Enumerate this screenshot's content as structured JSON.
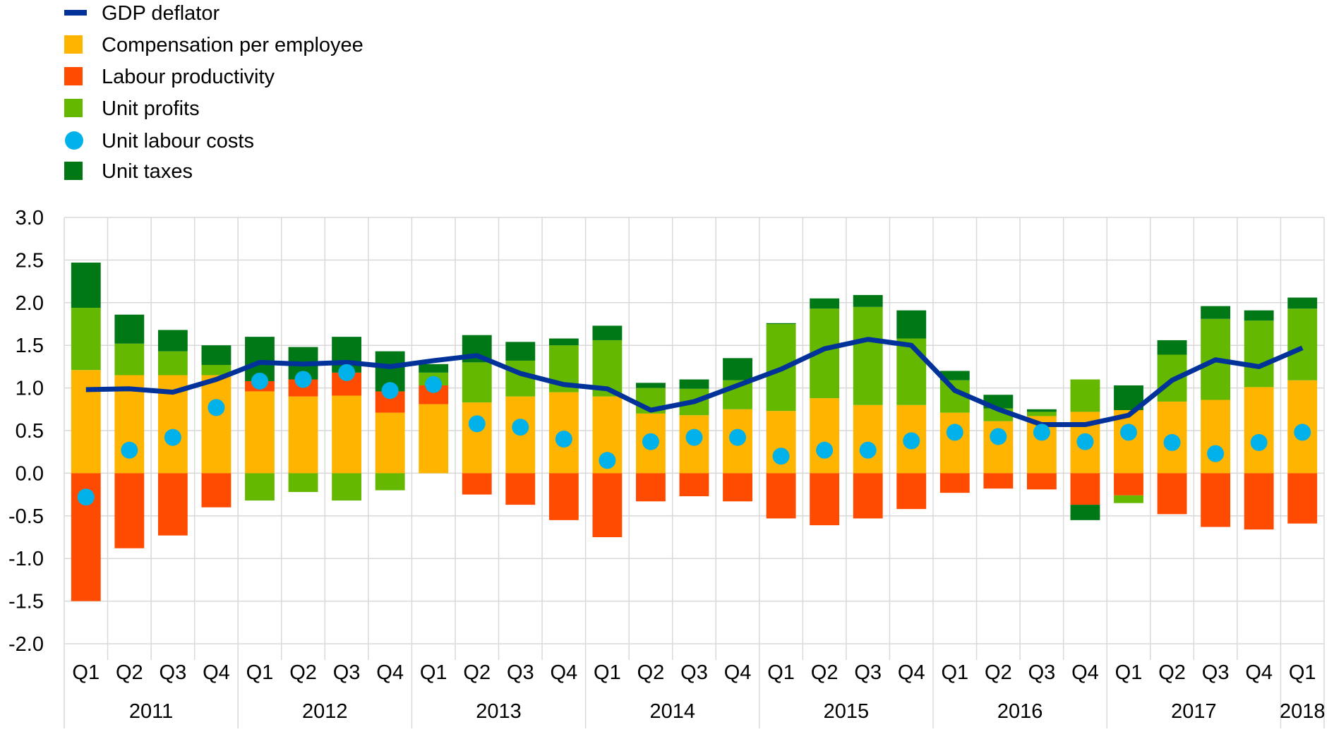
{
  "chart_data": {
    "type": "bar",
    "title": "",
    "xlabel": "",
    "ylabel": "",
    "ylim": [
      -2.0,
      3.0
    ],
    "yticks": [
      "3.0",
      "2.5",
      "2.0",
      "1.5",
      "1.0",
      "0.5",
      "0.0",
      "-0.5",
      "-1.0",
      "-1.5",
      "-2.0"
    ],
    "ytick_values": [
      3.0,
      2.5,
      2.0,
      1.5,
      1.0,
      0.5,
      0.0,
      -0.5,
      -1.0,
      -1.5,
      -2.0
    ],
    "grid": true,
    "legend_position": "top-left",
    "years": [
      {
        "label": "2011",
        "quarters": 4
      },
      {
        "label": "2012",
        "quarters": 4
      },
      {
        "label": "2013",
        "quarters": 4
      },
      {
        "label": "2014",
        "quarters": 4
      },
      {
        "label": "2015",
        "quarters": 4
      },
      {
        "label": "2016",
        "quarters": 4
      },
      {
        "label": "2017",
        "quarters": 4
      },
      {
        "label": "2018",
        "quarters": 1
      }
    ],
    "categories": [
      "Q1",
      "Q2",
      "Q3",
      "Q4",
      "Q1",
      "Q2",
      "Q3",
      "Q4",
      "Q1",
      "Q2",
      "Q3",
      "Q4",
      "Q1",
      "Q2",
      "Q3",
      "Q4",
      "Q1",
      "Q2",
      "Q3",
      "Q4",
      "Q1",
      "Q2",
      "Q3",
      "Q4",
      "Q1",
      "Q2",
      "Q3",
      "Q4",
      "Q1"
    ],
    "series": [
      {
        "name": "GDP deflator",
        "kind": "line",
        "color": "#003299",
        "values": [
          0.98,
          0.99,
          0.95,
          1.1,
          1.3,
          1.28,
          1.3,
          1.25,
          1.32,
          1.38,
          1.17,
          1.04,
          0.99,
          0.74,
          0.84,
          1.03,
          1.22,
          1.46,
          1.57,
          1.5,
          0.97,
          0.75,
          0.57,
          0.57,
          0.68,
          1.09,
          1.33,
          1.25,
          1.47
        ]
      },
      {
        "name": "Compensation per employee",
        "kind": "bar",
        "color": "#FFB400",
        "values": [
          1.21,
          1.15,
          1.15,
          1.15,
          0.96,
          0.9,
          0.91,
          0.71,
          0.81,
          0.83,
          0.9,
          0.95,
          0.9,
          0.7,
          0.68,
          0.75,
          0.73,
          0.88,
          0.8,
          0.8,
          0.71,
          0.61,
          0.67,
          0.72,
          0.74,
          0.84,
          0.86,
          1.01,
          1.09
        ]
      },
      {
        "name": "Labour productivity",
        "kind": "bar",
        "color": "#FF4B00",
        "values": [
          -1.5,
          -0.88,
          -0.73,
          -0.4,
          0.12,
          0.2,
          0.27,
          0.25,
          0.22,
          -0.25,
          -0.37,
          -0.55,
          -0.75,
          -0.33,
          -0.27,
          -0.33,
          -0.53,
          -0.61,
          -0.53,
          -0.42,
          -0.23,
          -0.18,
          -0.19,
          -0.37,
          -0.26,
          -0.48,
          -0.63,
          -0.66,
          -0.59
        ]
      },
      {
        "name": "Unit profits",
        "kind": "bar",
        "color": "#65B800",
        "values": [
          0.73,
          0.37,
          0.28,
          0.12,
          -0.32,
          -0.22,
          -0.32,
          -0.2,
          0.15,
          0.47,
          0.42,
          0.55,
          0.66,
          0.3,
          0.31,
          0.34,
          1.02,
          1.05,
          1.15,
          0.78,
          0.38,
          0.15,
          0.05,
          0.38,
          -0.09,
          0.55,
          0.95,
          0.78,
          0.84
        ]
      },
      {
        "name": "Unit labour costs",
        "kind": "dot",
        "color": "#00B1EA",
        "values": [
          -0.28,
          0.27,
          0.42,
          0.77,
          1.08,
          1.1,
          1.18,
          0.97,
          1.04,
          0.58,
          0.54,
          0.4,
          0.15,
          0.37,
          0.42,
          0.42,
          0.2,
          0.27,
          0.27,
          0.38,
          0.48,
          0.43,
          0.48,
          0.37,
          0.48,
          0.36,
          0.23,
          0.36,
          0.48
        ]
      },
      {
        "name": "Unit taxes",
        "kind": "bar",
        "color": "#007816",
        "values": [
          0.53,
          0.34,
          0.25,
          0.23,
          0.52,
          0.38,
          0.42,
          0.47,
          0.1,
          0.32,
          0.22,
          0.08,
          0.17,
          0.06,
          0.11,
          0.26,
          0.01,
          0.12,
          0.14,
          0.33,
          0.11,
          0.16,
          0.03,
          -0.18,
          0.29,
          0.17,
          0.15,
          0.12,
          0.13
        ]
      }
    ]
  }
}
